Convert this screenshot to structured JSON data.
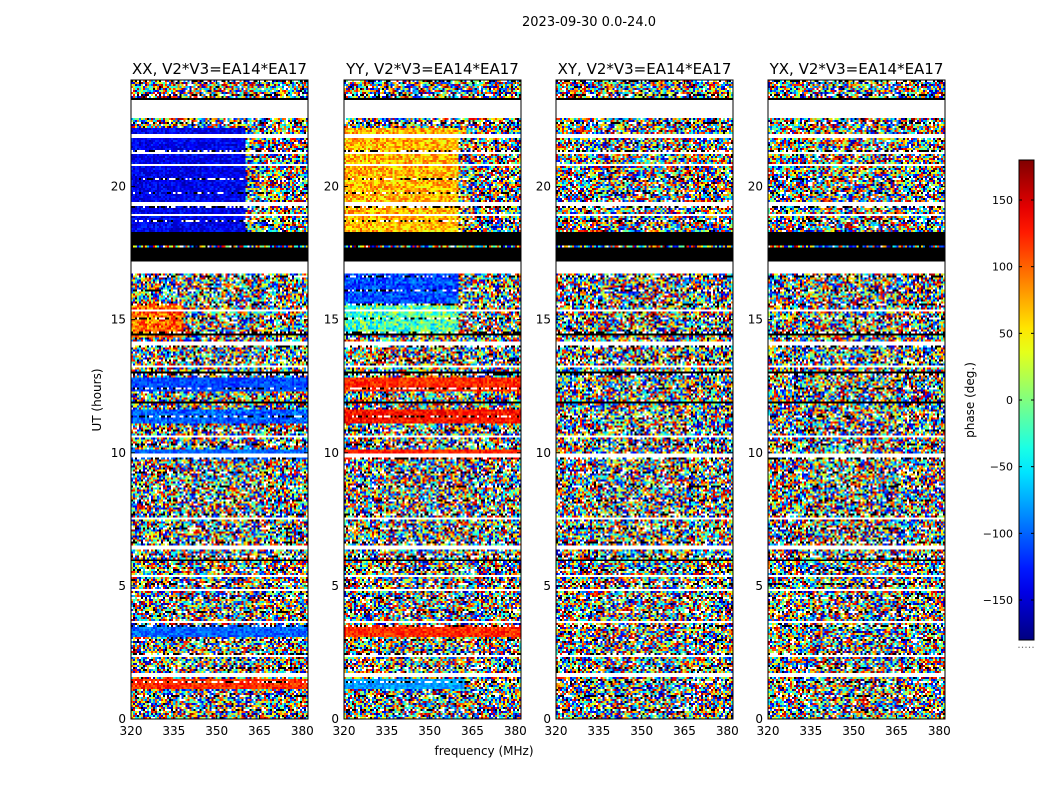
{
  "figure": {
    "suptitle": "2023-09-30 0.0-24.0",
    "xlabel": "frequency (MHz)",
    "ylabel": "UT (hours)",
    "cbar_label": "phase (deg.)",
    "cbar_dots": "....."
  },
  "chart_data": {
    "type": "heatmap",
    "colormap": "jet",
    "xlim": [
      320,
      382
    ],
    "ylim": [
      0,
      24
    ],
    "xticks": [
      "320",
      "335",
      "350",
      "365",
      "380"
    ],
    "xtick_values": [
      320,
      335,
      350,
      365,
      380
    ],
    "yticks": [
      "0",
      "5",
      "10",
      "15",
      "20"
    ],
    "ytick_values": [
      0,
      5,
      10,
      15,
      20
    ],
    "cbar_ticks": [
      "−150",
      "−100",
      "−50",
      "0",
      "50",
      "100",
      "150"
    ],
    "cbar_tick_values": [
      -150,
      -100,
      -50,
      0,
      50,
      100,
      150
    ],
    "cbar_range": [
      -180,
      180
    ],
    "panels": [
      {
        "title": "XX, V2*V3=EA14*EA17",
        "coherent_regions": [
          {
            "x": [
              320,
              360
            ],
            "y": [
              18.3,
              22.2
            ],
            "phase": -140,
            "spread": 25
          },
          {
            "x": [
              320,
              338
            ],
            "y": [
              14.3,
              15.6
            ],
            "phase": 100,
            "spread": 50
          },
          {
            "x": [
              320,
              382
            ],
            "y": [
              12.3,
              12.8
            ],
            "phase": -110,
            "spread": 25
          },
          {
            "x": [
              320,
              382
            ],
            "y": [
              11.1,
              11.6
            ],
            "phase": -100,
            "spread": 30
          },
          {
            "x": [
              320,
              382
            ],
            "y": [
              9.75,
              10.1
            ],
            "phase": -100,
            "spread": 20
          },
          {
            "x": [
              320,
              382
            ],
            "y": [
              3.1,
              3.5
            ],
            "phase": -100,
            "spread": 25
          },
          {
            "x": [
              320,
              382
            ],
            "y": [
              1.1,
              1.5
            ],
            "phase": 120,
            "spread": 25
          }
        ]
      },
      {
        "title": "YY, V2*V3=EA14*EA17",
        "coherent_regions": [
          {
            "x": [
              320,
              360
            ],
            "y": [
              18.3,
              22.2
            ],
            "phase": 70,
            "spread": 40
          },
          {
            "x": [
              320,
              360
            ],
            "y": [
              15.6,
              16.7
            ],
            "phase": -110,
            "spread": 35
          },
          {
            "x": [
              320,
              360
            ],
            "y": [
              14.4,
              15.5
            ],
            "phase": -20,
            "spread": 60
          },
          {
            "x": [
              320,
              382
            ],
            "y": [
              12.3,
              12.8
            ],
            "phase": 120,
            "spread": 25
          },
          {
            "x": [
              320,
              382
            ],
            "y": [
              11.1,
              11.6
            ],
            "phase": 130,
            "spread": 25
          },
          {
            "x": [
              320,
              382
            ],
            "y": [
              9.75,
              10.1
            ],
            "phase": 125,
            "spread": 20
          },
          {
            "x": [
              320,
              382
            ],
            "y": [
              3.1,
              3.5
            ],
            "phase": 120,
            "spread": 25
          },
          {
            "x": [
              320,
              362
            ],
            "y": [
              1.1,
              1.5
            ],
            "phase": -80,
            "spread": 20
          }
        ]
      },
      {
        "title": "XY, V2*V3=EA14*EA17",
        "coherent_regions": []
      },
      {
        "title": "YX, V2*V3=EA14*EA17",
        "coherent_regions": []
      }
    ]
  }
}
